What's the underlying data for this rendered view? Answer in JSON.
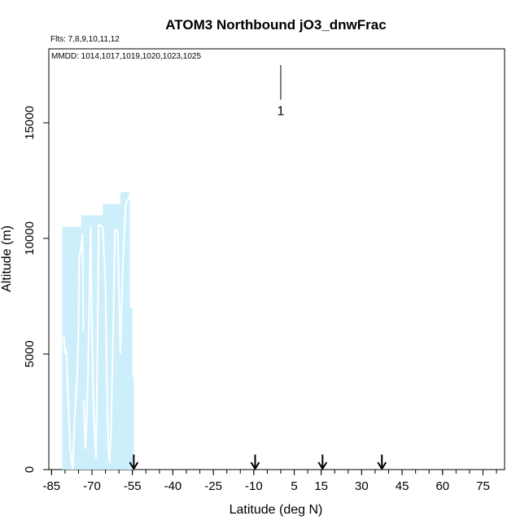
{
  "chart_data": {
    "type": "area",
    "title": "ATOM3 Northbound jO3_dnwFrac",
    "flights_note": "Flts: 7,8,9,10,11,12",
    "dates_note": "MMDD: 1014,1017,1019,1020,1023,1025",
    "xlabel": "Latitude (deg N)",
    "ylabel": "Altitude (m)",
    "xlim": [
      -86,
      83
    ],
    "ylim": [
      0,
      18200
    ],
    "x_ticks": [
      -85,
      -70,
      -55,
      -40,
      -25,
      -10,
      5,
      15,
      30,
      45,
      60,
      75
    ],
    "x_tick_labels": [
      "-85",
      "-70",
      "-55",
      "-40",
      "-25",
      "-10",
      "5",
      "15",
      "30",
      "45",
      "60",
      "75"
    ],
    "x_minor_step": 5,
    "y_ticks": [
      0,
      5000,
      10000,
      15000
    ],
    "y_tick_labels": [
      "0",
      "5000",
      "10000",
      "15000"
    ],
    "scale_bar": {
      "x": 0,
      "y_top": 17500,
      "y_bottom": 16000,
      "label": "1"
    },
    "shaded_region": {
      "color": "#cdeffb",
      "x": [
        -81,
        -81,
        -74,
        -74,
        -66,
        -66,
        -59.5,
        -59.5,
        -56,
        -56,
        -55,
        -55,
        -54.5,
        -54.5
      ],
      "y": [
        8500,
        10500,
        10500,
        11000,
        11000,
        11500,
        11500,
        12000,
        12000,
        7000,
        7000,
        4000,
        4000,
        0
      ]
    },
    "profile_lines": [
      {
        "color": "#ffffff",
        "x": [
          -80.5,
          -80,
          -79.5,
          -79,
          -78.5,
          -78,
          -77.2,
          -77,
          -76.5,
          -75.5,
          -75,
          -74.8,
          -73.5,
          -73.2
        ],
        "y": [
          5800,
          5000,
          5200,
          3500,
          2000,
          800,
          0,
          600,
          2000,
          4000,
          6000,
          9000,
          10200,
          6000
        ]
      },
      {
        "color": "#ffffff",
        "x": [
          -73,
          -72.5,
          -72,
          -71.5,
          -71,
          -70.5,
          -70,
          -69.5,
          -69,
          -68.5,
          -68,
          -67.5
        ],
        "y": [
          3000,
          900,
          2000,
          4000,
          7000,
          10500,
          6000,
          3000,
          1500,
          500,
          5000,
          10600
        ]
      },
      {
        "color": "#ffffff",
        "x": [
          -67.5,
          -66,
          -65,
          -64.5,
          -64,
          -63.5,
          -63,
          -62.5,
          -62,
          -61.5
        ],
        "y": [
          10600,
          10500,
          8000,
          4000,
          1000,
          300,
          1500,
          4000,
          7000,
          10400
        ]
      },
      {
        "color": "#ffffff",
        "x": [
          -61.5,
          -60.5,
          -60,
          -59.5,
          -58.5,
          -57.5,
          -56.5,
          -56,
          -55.5,
          -55
        ],
        "y": [
          10400,
          10300,
          8000,
          5000,
          9000,
          11500,
          11700,
          11900,
          12000,
          11800
        ]
      }
    ],
    "arrows": {
      "x": [
        -54.5,
        -9.5,
        15.5,
        37.5
      ],
      "y_top": 650,
      "y_tip": 0
    }
  }
}
